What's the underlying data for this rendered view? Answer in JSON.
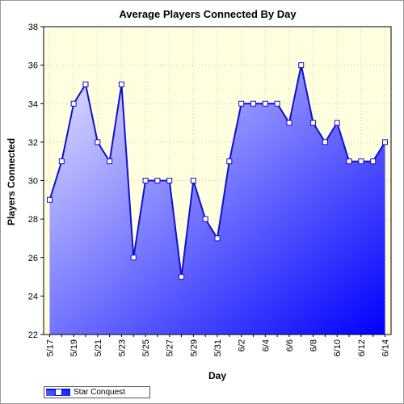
{
  "chart_data": {
    "type": "area",
    "title": "Average Players Connected By Day",
    "xlabel": "Day",
    "ylabel": "Players Connected",
    "ylim": [
      22,
      38
    ],
    "yticks": [
      22,
      24,
      26,
      28,
      30,
      32,
      34,
      36,
      38
    ],
    "x": [
      "5/17",
      "5/18",
      "5/19",
      "5/20",
      "5/21",
      "5/22",
      "5/23",
      "5/24",
      "5/25",
      "5/26",
      "5/27",
      "5/28",
      "5/29",
      "5/30",
      "5/31",
      "6/1",
      "6/2",
      "6/3",
      "6/4",
      "6/5",
      "6/6",
      "6/7",
      "6/8",
      "6/9",
      "6/10",
      "6/11",
      "6/12",
      "6/13",
      "6/14"
    ],
    "xtick_labels": [
      "5/17",
      "5/19",
      "5/21",
      "5/23",
      "5/25",
      "5/27",
      "5/29",
      "5/31",
      "6/2",
      "6/4",
      "6/6",
      "6/8",
      "6/10",
      "6/12",
      "6/14"
    ],
    "series": [
      {
        "name": "Star Conquest",
        "values": [
          29,
          31,
          34,
          35,
          32,
          31,
          35,
          26,
          30,
          30,
          30,
          25,
          30,
          28,
          27,
          31,
          34,
          34,
          34,
          34,
          33,
          36,
          33,
          32,
          33,
          31,
          31,
          31,
          32
        ]
      }
    ],
    "grid": true,
    "legend": "bottom-left",
    "colors": {
      "background": "#ffffe0",
      "line": "#1010cc",
      "fill_light": "#e6e6ff",
      "fill_dark": "#0000ff"
    }
  }
}
